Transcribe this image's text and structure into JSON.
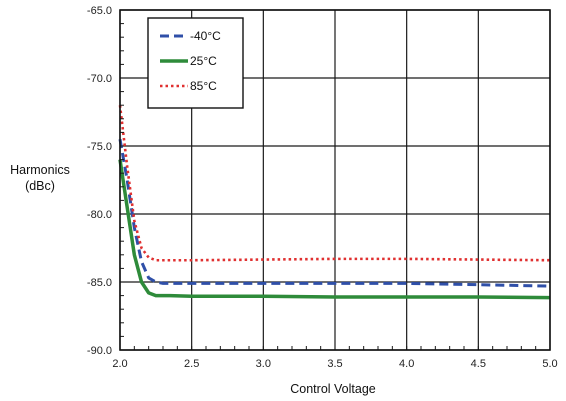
{
  "chart_data": {
    "type": "line",
    "title": "",
    "xlabel": "Control Voltage",
    "ylabel_lines": [
      "Harmonics",
      "(dBc)"
    ],
    "xlim": [
      2.0,
      5.0
    ],
    "ylim": [
      -90.0,
      -65.0
    ],
    "x_ticks": [
      "2.0",
      "2.5",
      "3.0",
      "3.5",
      "4.0",
      "4.5",
      "5.0"
    ],
    "y_ticks": [
      "-65.0",
      "-70.0",
      "-75.0",
      "-80.0",
      "-85.0",
      "-90.0"
    ],
    "grid": true,
    "legend_position": "top-left",
    "series": [
      {
        "name": "-40°C",
        "color": "#2f4fa8",
        "style": "dashed",
        "points": [
          [
            2.0,
            -74.5
          ],
          [
            2.05,
            -77.5
          ],
          [
            2.1,
            -81.0
          ],
          [
            2.15,
            -83.5
          ],
          [
            2.2,
            -84.7
          ],
          [
            2.25,
            -85.0
          ],
          [
            2.3,
            -85.1
          ],
          [
            2.5,
            -85.1
          ],
          [
            3.0,
            -85.1
          ],
          [
            3.5,
            -85.1
          ],
          [
            4.0,
            -85.1
          ],
          [
            4.5,
            -85.2
          ],
          [
            5.0,
            -85.3
          ]
        ]
      },
      {
        "name": "25°C",
        "color": "#2e8b3a",
        "style": "solid",
        "points": [
          [
            2.0,
            -76.0
          ],
          [
            2.05,
            -79.5
          ],
          [
            2.1,
            -83.0
          ],
          [
            2.15,
            -85.0
          ],
          [
            2.2,
            -85.8
          ],
          [
            2.25,
            -86.0
          ],
          [
            2.35,
            -86.0
          ],
          [
            2.5,
            -86.05
          ],
          [
            3.0,
            -86.05
          ],
          [
            3.5,
            -86.1
          ],
          [
            4.0,
            -86.1
          ],
          [
            4.5,
            -86.1
          ],
          [
            5.0,
            -86.15
          ]
        ]
      },
      {
        "name": "85°C",
        "color": "#e03030",
        "style": "dotted",
        "points": [
          [
            2.0,
            -72.0
          ],
          [
            2.05,
            -76.5
          ],
          [
            2.1,
            -80.5
          ],
          [
            2.15,
            -82.5
          ],
          [
            2.2,
            -83.2
          ],
          [
            2.25,
            -83.4
          ],
          [
            2.5,
            -83.4
          ],
          [
            3.0,
            -83.35
          ],
          [
            3.5,
            -83.3
          ],
          [
            4.0,
            -83.3
          ],
          [
            4.5,
            -83.35
          ],
          [
            5.0,
            -83.4
          ]
        ]
      }
    ]
  }
}
